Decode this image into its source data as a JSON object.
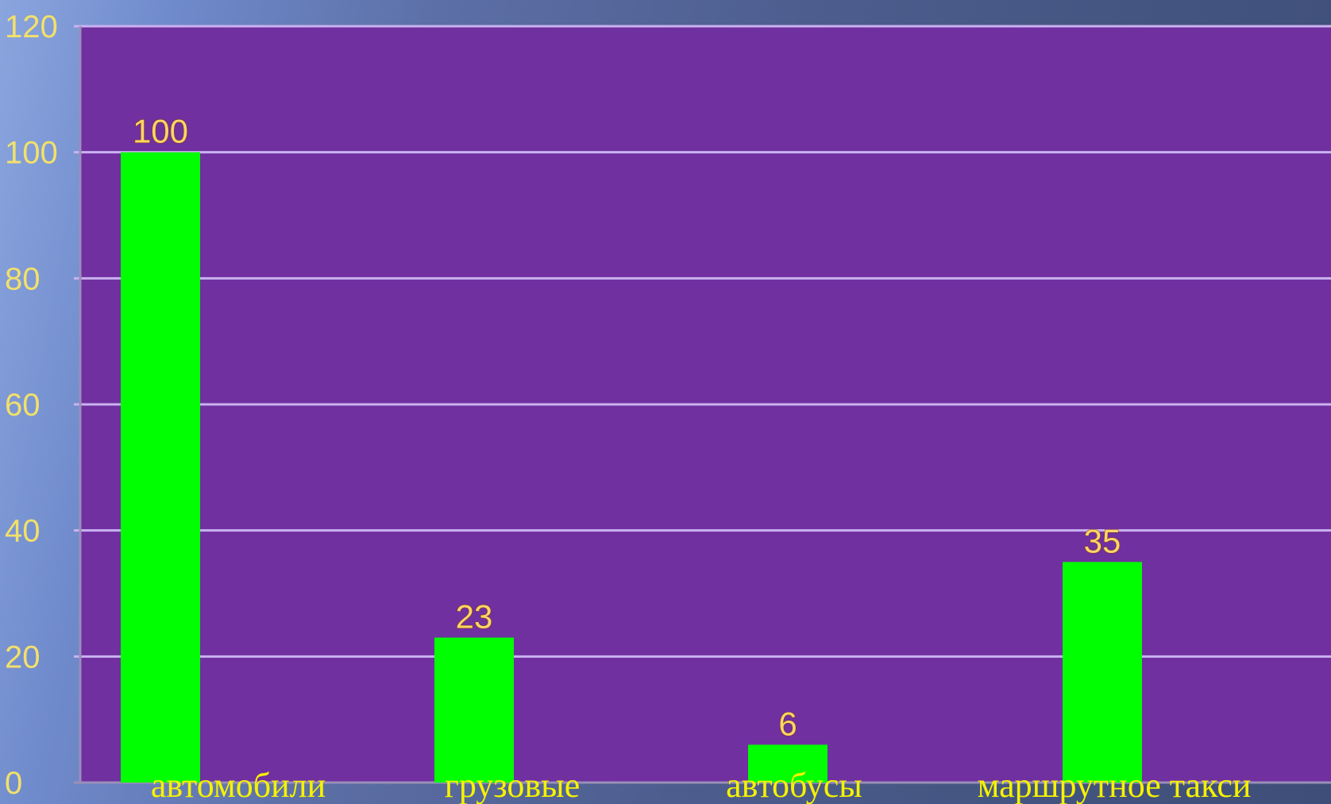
{
  "chart_data": {
    "type": "bar",
    "categories": [
      "автомобили",
      "грузовые",
      "автобусы",
      "маршрутное такси"
    ],
    "values": [
      100,
      23,
      6,
      35
    ],
    "title": "",
    "xlabel": "",
    "ylabel": "",
    "ylim": [
      0,
      120
    ],
    "yticks": [
      "0",
      "20",
      "40",
      "60",
      "80",
      "100",
      "120"
    ],
    "data_labels": [
      "100",
      "23",
      "6",
      "35"
    ],
    "grid": true,
    "legend": "none"
  },
  "colors": {
    "plot_background": "#7030a0",
    "bar": "#00ff00",
    "gridline": "#c9b2f0",
    "tick_label": "#f2e06a",
    "data_label": "#ffd46a",
    "category_label": "#f6f200"
  }
}
